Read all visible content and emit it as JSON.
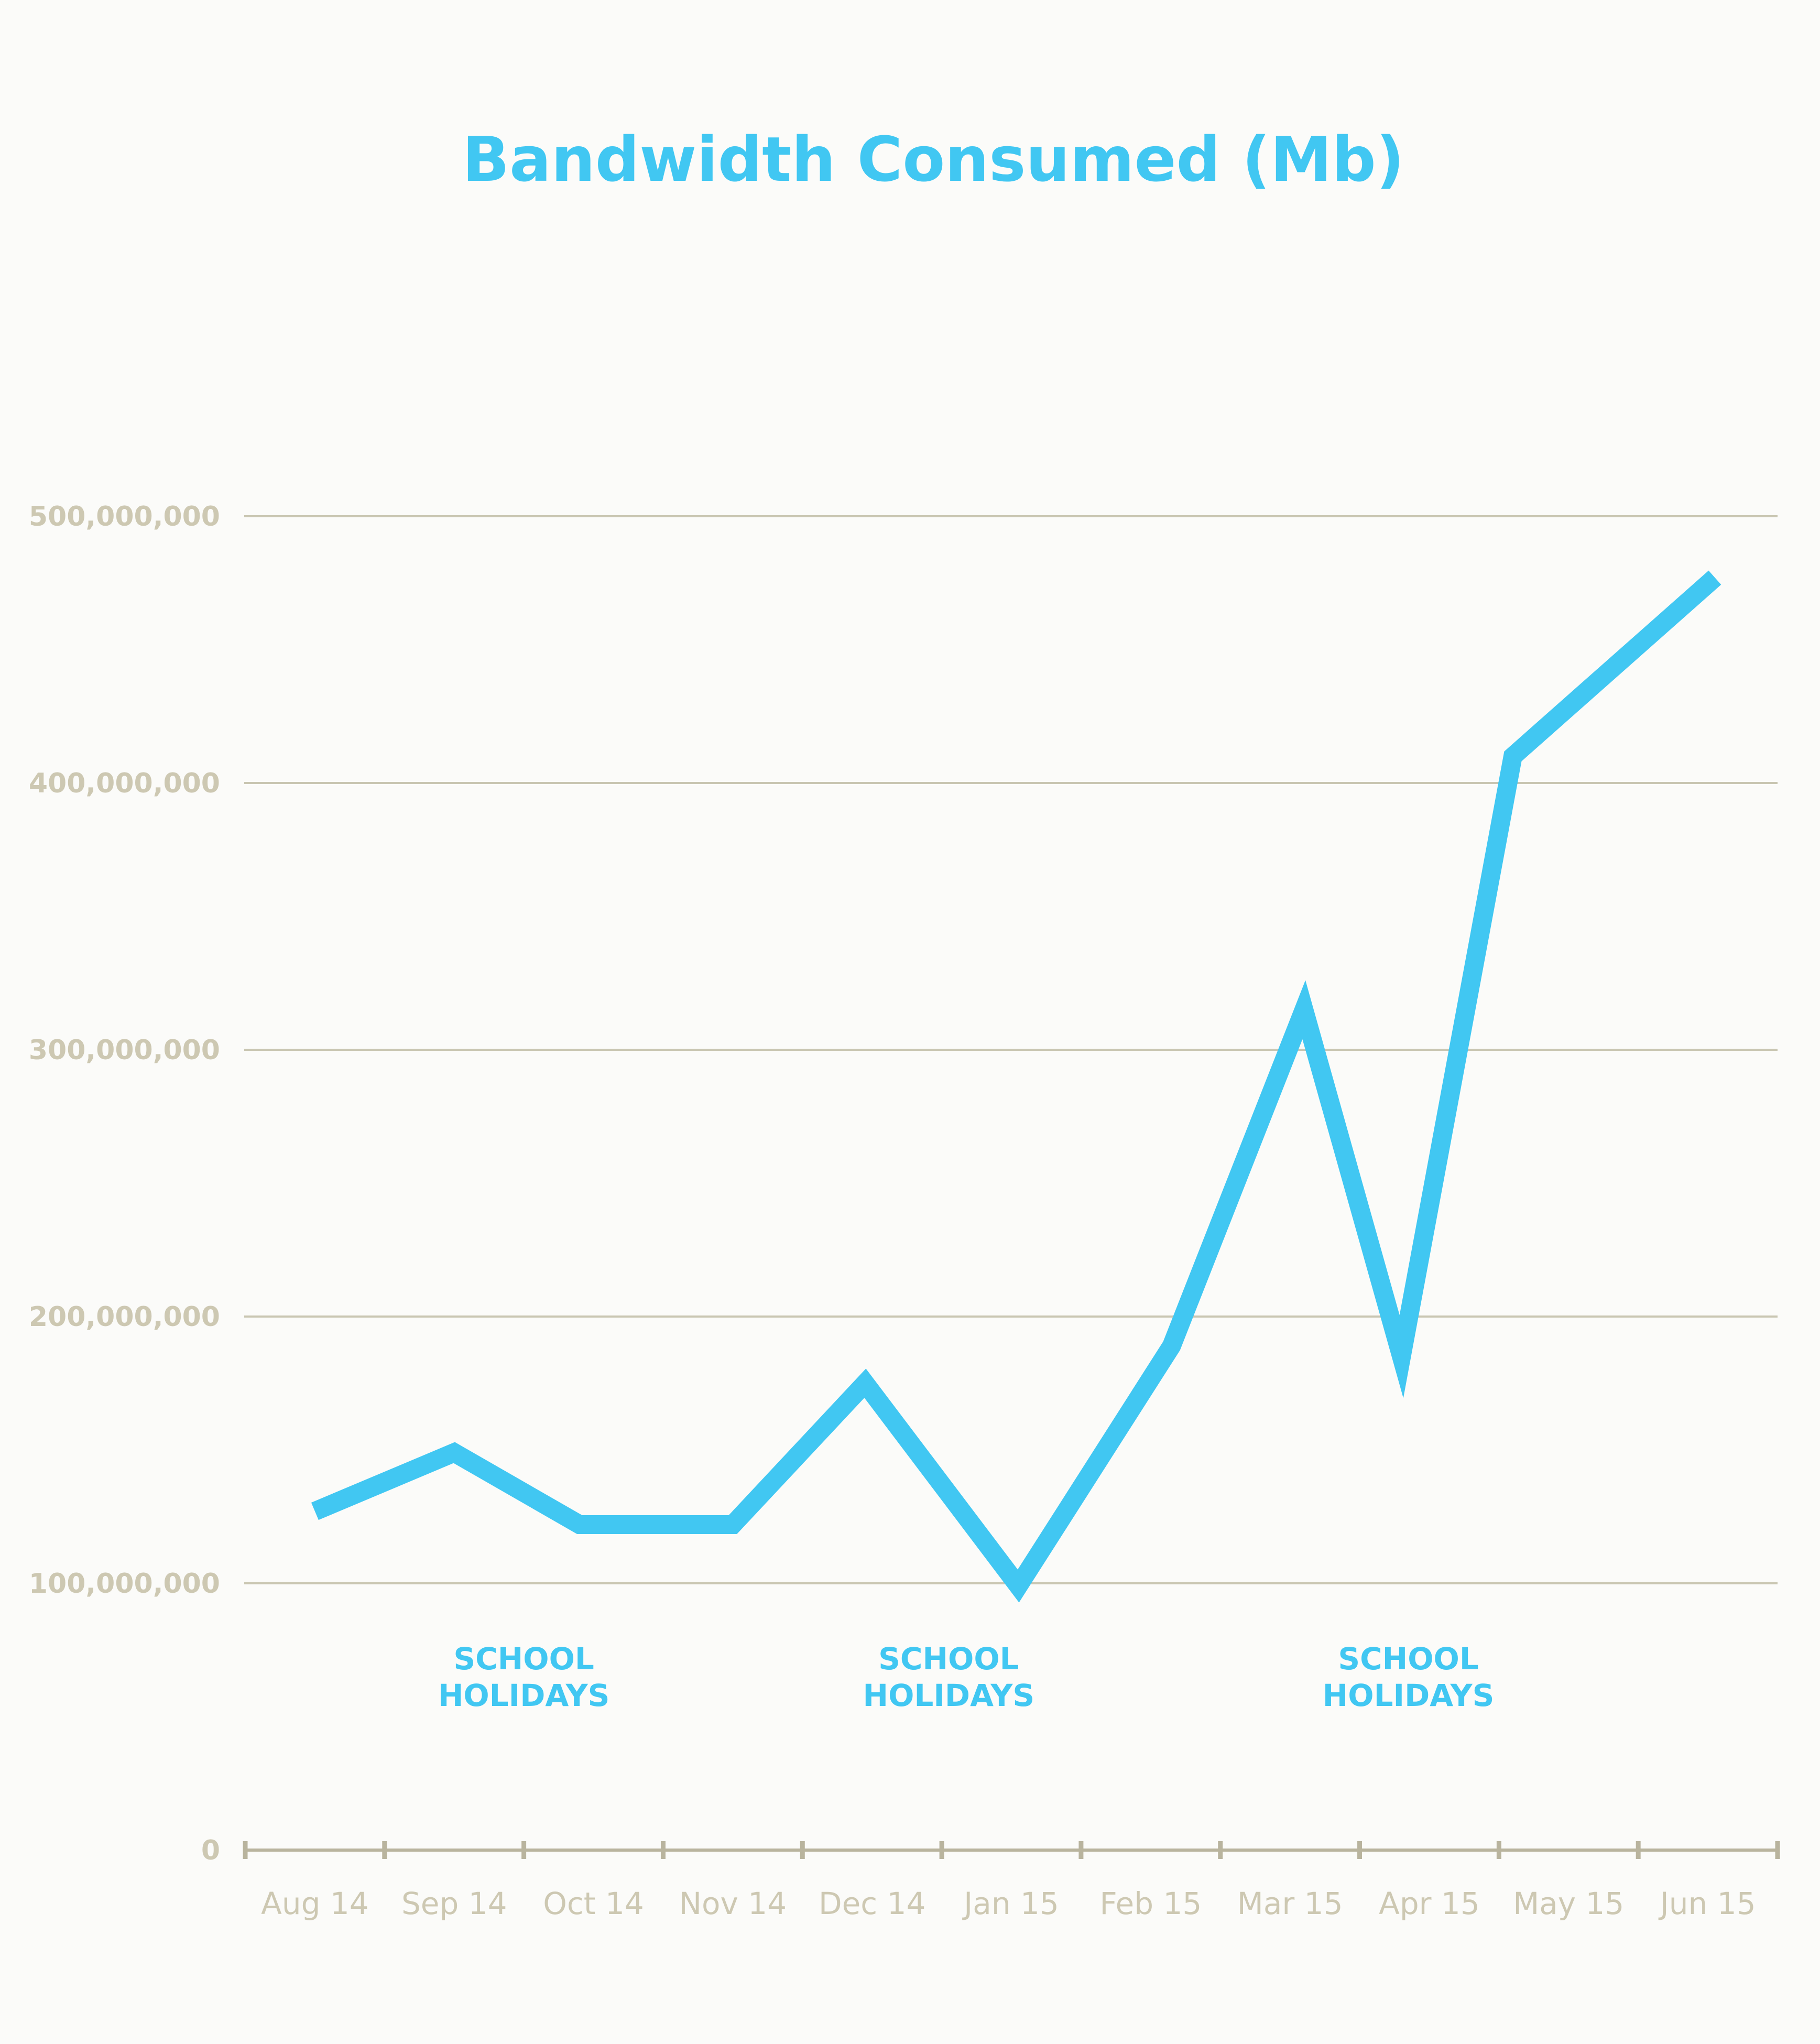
{
  "colors": {
    "background": "#fbfbf9",
    "accent": "#41c7f2",
    "axis_text": "#cdc8b2",
    "grid": "#c9c6b2",
    "axis": "#b9b49e"
  },
  "chart_data": {
    "type": "line",
    "title": "Bandwidth Consumed (Mb)",
    "xlabel": "",
    "ylabel": "",
    "ylim": [
      0,
      500000000
    ],
    "yticks": [
      0,
      100000000,
      200000000,
      300000000,
      400000000,
      500000000
    ],
    "ytick_labels": [
      "0",
      "100,000,000",
      "200,000,000",
      "300,000,000",
      "400,000,000",
      "500,000,000"
    ],
    "categories": [
      "Aug 14",
      "Sep 14",
      "Oct 14",
      "Nov 14",
      "Dec 14",
      "Jan 15",
      "Feb 15",
      "Mar 15",
      "Apr 15",
      "May 15",
      "Jun 15"
    ],
    "x_positions": [
      0.5,
      1.5,
      2.5,
      3.5,
      4.5,
      5.5,
      6.5,
      7.5,
      8.5,
      9.5,
      10.5
    ],
    "series": [
      {
        "x": [
          0.5,
          1.5,
          2.4,
          3.5,
          4.45,
          5.55,
          6.65,
          7.6,
          8.3,
          9.1,
          10.55
        ],
        "values": [
          127000000,
          149000000,
          122000000,
          122000000,
          175000000,
          99000000,
          189000000,
          315000000,
          185000000,
          410000000,
          477000000
        ]
      }
    ],
    "grid": true,
    "annotations": [
      {
        "text": [
          "SCHOOL",
          "HOLIDAYS"
        ],
        "x": 2.0
      },
      {
        "text": [
          "SCHOOL",
          "HOLIDAYS"
        ],
        "x": 5.05
      },
      {
        "text": [
          "SCHOOL",
          "HOLIDAYS"
        ],
        "x": 8.35
      }
    ]
  }
}
